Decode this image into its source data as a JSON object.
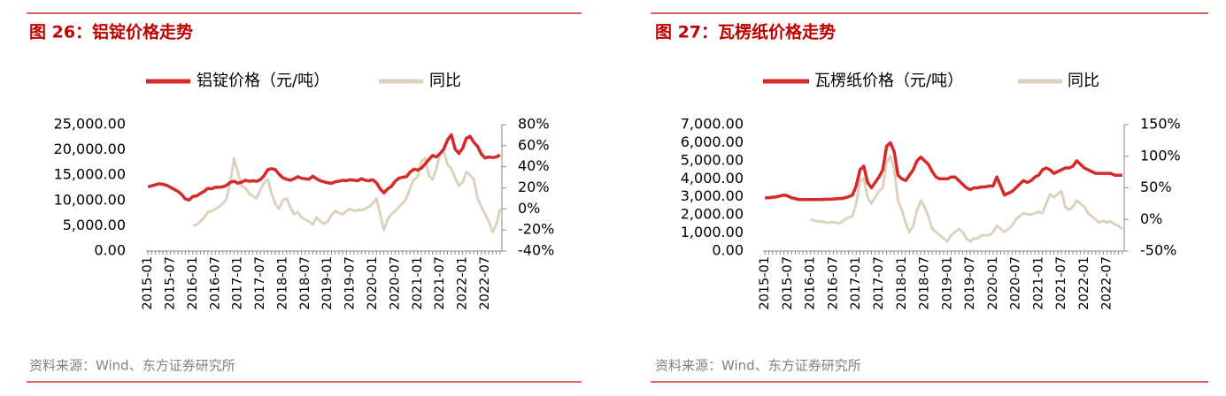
{
  "chart_data": [
    {
      "type": "line",
      "title": "图 26：铝锭价格走势",
      "source": "资料来源：Wind、东方证券研究所",
      "x": [
        "2015-01",
        null,
        null,
        null,
        null,
        null,
        "2015-07",
        null,
        null,
        null,
        null,
        null,
        "2016-01",
        null,
        null,
        null,
        null,
        null,
        "2016-07",
        null,
        null,
        null,
        null,
        null,
        "2017-01",
        null,
        null,
        null,
        null,
        null,
        "2017-07",
        null,
        null,
        null,
        null,
        null,
        "2018-01",
        null,
        null,
        null,
        null,
        null,
        "2018-07",
        null,
        null,
        null,
        null,
        null,
        "2019-01",
        null,
        null,
        null,
        null,
        null,
        "2019-07",
        null,
        null,
        null,
        null,
        null,
        "2020-01",
        null,
        null,
        null,
        null,
        null,
        "2020-07",
        null,
        null,
        null,
        null,
        null,
        "2021-01",
        null,
        null,
        null,
        null,
        null,
        "2021-07",
        null,
        null,
        null,
        null,
        null,
        "2022-01",
        null,
        null,
        null,
        null,
        null,
        "2022-07",
        null,
        null,
        null,
        null
      ],
      "ylim": [
        0,
        25000
      ],
      "yticks": [
        {
          "value": 0,
          "label": "0.00"
        },
        {
          "value": 5000,
          "label": "5,000.00"
        },
        {
          "value": 10000,
          "label": "10,000.00"
        },
        {
          "value": 15000,
          "label": "15,000.00"
        },
        {
          "value": 20000,
          "label": "20,000.00"
        },
        {
          "value": 25000,
          "label": "25,000.00"
        }
      ],
      "y2lim": [
        -40,
        80
      ],
      "y2ticks": [
        {
          "value": -40,
          "label": "-40%"
        },
        {
          "value": -20,
          "label": "-20%"
        },
        {
          "value": 0,
          "label": "0%"
        },
        {
          "value": 20,
          "label": "20%"
        },
        {
          "value": 40,
          "label": "40%"
        },
        {
          "value": 60,
          "label": "60%"
        },
        {
          "value": 80,
          "label": "80%"
        }
      ],
      "series": [
        {
          "name": "铝锭价格（元/吨）",
          "color": "#d7282a",
          "values": [
            12700,
            12900,
            13100,
            13300,
            13200,
            13000,
            12600,
            12200,
            11800,
            11200,
            10300,
            10100,
            10800,
            10900,
            11400,
            11800,
            12400,
            12300,
            12600,
            12600,
            12700,
            13000,
            13600,
            13800,
            13400,
            13600,
            14000,
            13800,
            13900,
            13800,
            14100,
            14900,
            16100,
            16300,
            16100,
            15200,
            14500,
            14200,
            14000,
            14300,
            14700,
            14400,
            14300,
            14200,
            14800,
            14300,
            13900,
            13700,
            13500,
            13400,
            13700,
            13800,
            14000,
            13900,
            14100,
            14000,
            13900,
            14300,
            14000,
            13900,
            14100,
            13500,
            12300,
            11500,
            12300,
            12800,
            13800,
            14400,
            14600,
            14700,
            15600,
            16200,
            16000,
            16400,
            17200,
            18100,
            18900,
            18600,
            19300,
            20200,
            22000,
            23000,
            20200,
            19300,
            20300,
            22300,
            22700,
            21500,
            20700,
            19200,
            18400,
            18600,
            18500,
            18600,
            19000
          ]
        },
        {
          "name": "同比",
          "color": "#ddd3bd",
          "axis": "y2",
          "values": [
            null,
            null,
            null,
            null,
            null,
            null,
            null,
            null,
            null,
            null,
            null,
            null,
            -16,
            -15,
            -12,
            -8,
            -3,
            -2,
            0,
            2,
            5,
            10,
            25,
            48,
            35,
            22,
            20,
            15,
            12,
            10,
            18,
            25,
            28,
            15,
            5,
            0,
            8,
            10,
            2,
            -5,
            -3,
            -8,
            -10,
            -12,
            -15,
            -8,
            -12,
            -14,
            -12,
            -6,
            -2,
            -4,
            -5,
            -2,
            0,
            -2,
            -1,
            -1,
            0,
            2,
            5,
            10,
            -5,
            -20,
            -10,
            -5,
            -2,
            2,
            5,
            10,
            20,
            28,
            30,
            45,
            48,
            32,
            28,
            38,
            52,
            55,
            42,
            38,
            30,
            22,
            25,
            35,
            32,
            28,
            10,
            2,
            -5,
            -12,
            -22,
            -15,
            0
          ]
        }
      ]
    },
    {
      "type": "line",
      "title": "图 27：瓦楞纸价格走势",
      "source": "资料来源：Wind、东方证券研究所",
      "x": [
        "2015-01",
        null,
        null,
        null,
        null,
        null,
        "2015-07",
        null,
        null,
        null,
        null,
        null,
        "2016-01",
        null,
        null,
        null,
        null,
        null,
        "2016-07",
        null,
        null,
        null,
        null,
        null,
        "2017-01",
        null,
        null,
        null,
        null,
        null,
        "2017-07",
        null,
        null,
        null,
        null,
        null,
        "2018-01",
        null,
        null,
        null,
        null,
        null,
        "2018-07",
        null,
        null,
        null,
        null,
        null,
        "2019-01",
        null,
        null,
        null,
        null,
        null,
        "2019-07",
        null,
        null,
        null,
        null,
        null,
        "2020-01",
        null,
        null,
        null,
        null,
        null,
        "2020-07",
        null,
        null,
        null,
        null,
        null,
        "2021-01",
        null,
        null,
        null,
        null,
        null,
        "2021-07",
        null,
        null,
        null,
        null,
        null,
        "2022-01",
        null,
        null,
        null,
        null,
        null,
        "2022-07",
        null,
        null,
        null,
        null
      ],
      "ylim": [
        0,
        7000
      ],
      "yticks": [
        {
          "value": 0,
          "label": "0.00"
        },
        {
          "value": 1000,
          "label": "1,000.00"
        },
        {
          "value": 2000,
          "label": "2,000.00"
        },
        {
          "value": 3000,
          "label": "3,000.00"
        },
        {
          "value": 4000,
          "label": "4,000.00"
        },
        {
          "value": 5000,
          "label": "5,000.00"
        },
        {
          "value": 6000,
          "label": "6,000.00"
        },
        {
          "value": 7000,
          "label": "7,000.00"
        }
      ],
      "y2lim": [
        -50,
        150
      ],
      "y2ticks": [
        {
          "value": -50,
          "label": "-50%"
        },
        {
          "value": 0,
          "label": "0%"
        },
        {
          "value": 50,
          "label": "50%"
        },
        {
          "value": 100,
          "label": "100%"
        },
        {
          "value": 150,
          "label": "150%"
        }
      ],
      "series": [
        {
          "name": "瓦楞纸价格（元/吨）",
          "color": "#d7282a",
          "values": [
            2950,
            2950,
            2980,
            3000,
            3050,
            3100,
            3050,
            2950,
            2900,
            2850,
            2850,
            2850,
            2850,
            2850,
            2850,
            2850,
            2870,
            2870,
            2880,
            2900,
            2900,
            2950,
            3000,
            3100,
            3600,
            4500,
            4700,
            3800,
            3500,
            3800,
            4100,
            4500,
            5800,
            6000,
            5500,
            4200,
            4000,
            3900,
            4200,
            4500,
            5000,
            5200,
            5000,
            4800,
            4400,
            4100,
            4000,
            4000,
            4000,
            4100,
            4100,
            3900,
            3700,
            3500,
            3400,
            3500,
            3500,
            3550,
            3550,
            3600,
            3600,
            4100,
            3600,
            3100,
            3200,
            3300,
            3500,
            3700,
            3900,
            3800,
            3900,
            4100,
            4200,
            4500,
            4600,
            4500,
            4300,
            4400,
            4500,
            4600,
            4600,
            4700,
            5000,
            4800,
            4600,
            4500,
            4400,
            4300,
            4300,
            4300,
            4300,
            4300,
            4200,
            4200,
            4200
          ]
        },
        {
          "name": "同比",
          "color": "#ddd3bd",
          "axis": "y2",
          "values": [
            null,
            null,
            null,
            null,
            null,
            null,
            null,
            null,
            null,
            null,
            null,
            null,
            0,
            -2,
            -3,
            -3,
            -5,
            -5,
            -4,
            -6,
            -5,
            0,
            3,
            5,
            25,
            60,
            65,
            35,
            25,
            35,
            45,
            50,
            90,
            100,
            80,
            30,
            15,
            -5,
            -20,
            -10,
            15,
            30,
            20,
            5,
            -15,
            -20,
            -25,
            -30,
            -35,
            -25,
            -20,
            -15,
            -20,
            -30,
            -35,
            -30,
            -30,
            -25,
            -25,
            -25,
            -20,
            -10,
            -15,
            -20,
            -15,
            -10,
            0,
            5,
            10,
            8,
            8,
            10,
            12,
            10,
            25,
            40,
            35,
            40,
            45,
            20,
            15,
            20,
            30,
            25,
            20,
            10,
            5,
            0,
            -5,
            -2,
            -5,
            -3,
            -8,
            -10,
            -15
          ]
        }
      ]
    }
  ]
}
